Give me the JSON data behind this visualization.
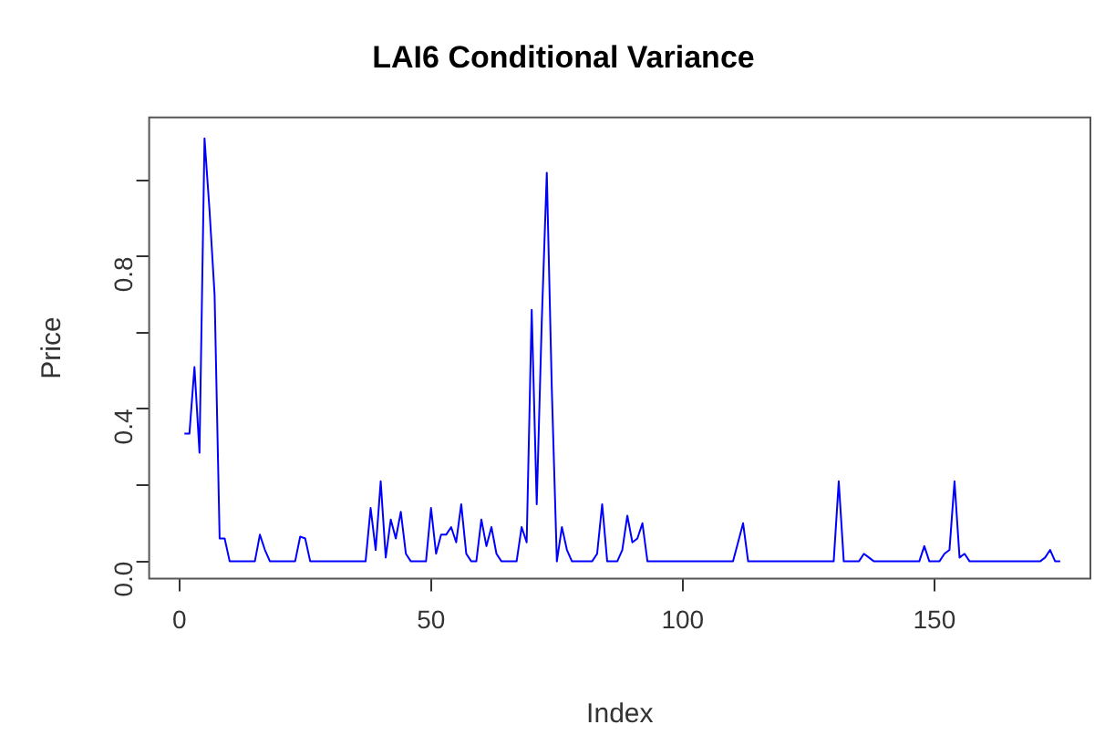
{
  "chart_data": {
    "type": "line",
    "title": "LAI6 Conditional Variance",
    "xlabel": "Index",
    "ylabel": "Price",
    "series": [
      {
        "color": "#0000ff",
        "x": [
          1,
          2,
          3,
          4,
          5,
          6,
          7,
          8,
          9,
          10,
          15,
          16,
          17,
          18,
          23,
          24,
          25,
          26,
          37,
          38,
          39,
          40,
          41,
          42,
          43,
          44,
          45,
          46,
          49,
          50,
          51,
          52,
          53,
          54,
          55,
          56,
          57,
          58,
          59,
          60,
          61,
          62,
          63,
          64,
          67,
          68,
          69,
          70,
          71,
          72,
          73,
          74,
          75,
          76,
          77,
          78,
          82,
          83,
          84,
          85,
          87,
          88,
          89,
          90,
          91,
          92,
          93,
          110,
          111,
          112,
          113,
          130,
          131,
          132,
          135,
          136,
          137,
          138,
          147,
          148,
          149,
          151,
          152,
          153,
          154,
          155,
          156,
          157,
          171,
          172,
          173,
          174,
          175
        ],
        "values": [
          0.335,
          0.335,
          0.51,
          0.285,
          1.11,
          0.92,
          0.7,
          0.06,
          0.06,
          0,
          0,
          0.07,
          0.03,
          0,
          0,
          0.065,
          0.06,
          0,
          0,
          0.14,
          0.03,
          0.21,
          0.01,
          0.11,
          0.06,
          0.13,
          0.02,
          0,
          0,
          0.14,
          0.02,
          0.07,
          0.07,
          0.09,
          0.05,
          0.15,
          0.02,
          0,
          0,
          0.11,
          0.04,
          0.09,
          0.02,
          0,
          0,
          0.09,
          0.05,
          0.66,
          0.15,
          0.63,
          1.02,
          0.45,
          0,
          0.09,
          0.03,
          0,
          0,
          0.02,
          0.15,
          0,
          0,
          0.03,
          0.12,
          0.05,
          0.06,
          0.1,
          0,
          0,
          0.05,
          0.1,
          0,
          0,
          0.21,
          0,
          0,
          0.02,
          0.01,
          0,
          0,
          0.04,
          0,
          0,
          0.02,
          0.03,
          0.21,
          0.01,
          0.02,
          0,
          0,
          0.01,
          0.03,
          0,
          0
        ]
      }
    ],
    "xlim": [
      -6,
      181
    ],
    "xticks": [
      0,
      50,
      100,
      150
    ],
    "ylim": [
      -0.045,
      1.165
    ],
    "yticks": [
      {
        "value": 0,
        "label": "0.0"
      },
      {
        "value": 0.2,
        "label": null
      },
      {
        "value": 0.4,
        "label": "0.4"
      },
      {
        "value": 0.6,
        "label": null
      },
      {
        "value": 0.8,
        "label": "0.8"
      },
      {
        "value": 1.0,
        "label": null
      }
    ],
    "grid": false,
    "legend": false,
    "marker": "none",
    "line_style": "solid"
  }
}
